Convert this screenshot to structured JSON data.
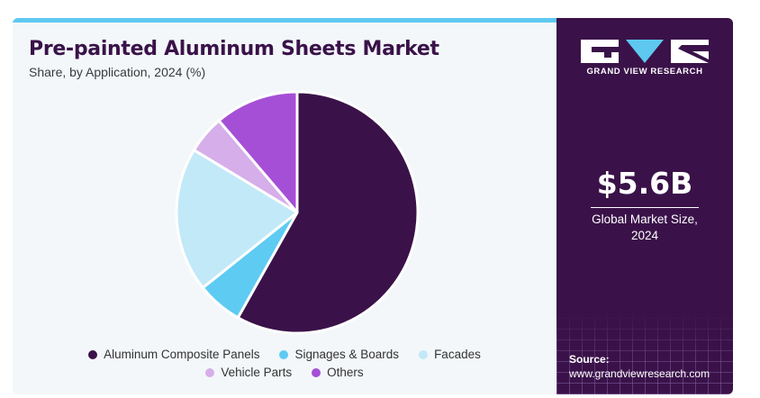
{
  "header": {
    "title": "Pre-painted Aluminum Sheets Market",
    "subtitle": "Share, by Application, 2024 (%)"
  },
  "chart_data": {
    "type": "pie",
    "categories": [
      "Aluminum Composite Panels",
      "Signages & Boards",
      "Facades",
      "Vehicle Parts",
      "Others"
    ],
    "values": [
      57,
      6,
      19,
      5,
      11
    ],
    "colors": [
      "#3a1249",
      "#5ecbf3",
      "#c2e9f8",
      "#d6aeea",
      "#a54fd6"
    ],
    "legend_placement": "bottom"
  },
  "legend": {
    "items": [
      "Aluminum Composite Panels",
      "Signages & Boards",
      "Facades",
      "Vehicle Parts",
      "Others"
    ]
  },
  "sidebar": {
    "brand": "GRAND VIEW RESEARCH",
    "market_size": "$5.6B",
    "market_size_label_line1": "Global Market Size,",
    "market_size_label_line2": "2024",
    "source_label": "Source:",
    "source_url": "www.grandviewresearch.com"
  },
  "colors": {
    "brand_purple": "#3a1249",
    "accent_cyan": "#5ec8f0",
    "panel_bg": "#f3f7fa"
  }
}
